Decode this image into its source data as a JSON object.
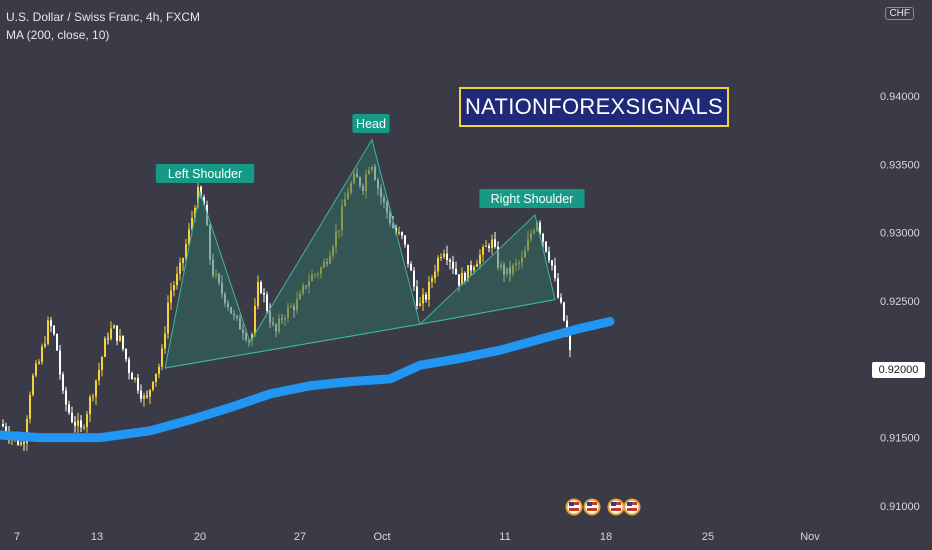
{
  "header": {
    "symbol": "U.S. Dollar / Swiss Franc, 4h, FXCM",
    "indicator": "MA (200, close, 10)"
  },
  "currency_badge": "CHF",
  "brand_label": "NATIONFOREXSIGNALS",
  "last_price": "0.92000",
  "colors": {
    "background": "#3a3b46",
    "up_candle": "#f3d23a",
    "down_candle": "#ffffff",
    "ma_line": "#2196f3",
    "pattern_fill": "#2e6b5e",
    "label_bg": "#159a86"
  },
  "event_icons": [
    "us-flag-icon",
    "us-flag-icon",
    "us-flag-icon",
    "us-flag-icon"
  ],
  "chart_data": {
    "type": "candlestick",
    "pattern": "head-and-shoulders",
    "annotations": [
      "Left Shoulder",
      "Head",
      "Right Shoulder"
    ],
    "y_ticks": [
      "0.94000",
      "0.93500",
      "0.93000",
      "0.92500",
      "0.92000",
      "0.91500",
      "0.91000"
    ],
    "x_ticks": [
      "7",
      "13",
      "20",
      "27",
      "Oct",
      "11",
      "18",
      "25",
      "Nov"
    ],
    "ylim": [
      0.9085,
      0.9475
    ],
    "close_path": [
      [
        0,
        0.916
      ],
      [
        12,
        0.915
      ],
      [
        22,
        0.9145
      ],
      [
        30,
        0.919
      ],
      [
        38,
        0.9205
      ],
      [
        48,
        0.9235
      ],
      [
        55,
        0.922
      ],
      [
        62,
        0.918
      ],
      [
        70,
        0.9165
      ],
      [
        80,
        0.9155
      ],
      [
        90,
        0.918
      ],
      [
        98,
        0.92
      ],
      [
        106,
        0.9225
      ],
      [
        112,
        0.923
      ],
      [
        120,
        0.922
      ],
      [
        128,
        0.92
      ],
      [
        136,
        0.919
      ],
      [
        145,
        0.9175
      ],
      [
        152,
        0.9195
      ],
      [
        160,
        0.9205
      ],
      [
        168,
        0.9255
      ],
      [
        178,
        0.927
      ],
      [
        188,
        0.93
      ],
      [
        196,
        0.933
      ],
      [
        203,
        0.932
      ],
      [
        210,
        0.9275
      ],
      [
        218,
        0.926
      ],
      [
        226,
        0.925
      ],
      [
        234,
        0.9235
      ],
      [
        242,
        0.923
      ],
      [
        250,
        0.922
      ],
      [
        258,
        0.9265
      ],
      [
        266,
        0.9245
      ],
      [
        274,
        0.9225
      ],
      [
        282,
        0.924
      ],
      [
        290,
        0.9245
      ],
      [
        298,
        0.925
      ],
      [
        306,
        0.9265
      ],
      [
        314,
        0.927
      ],
      [
        322,
        0.9275
      ],
      [
        330,
        0.929
      ],
      [
        338,
        0.9305
      ],
      [
        346,
        0.933
      ],
      [
        354,
        0.934
      ],
      [
        362,
        0.9335
      ],
      [
        370,
        0.9355
      ],
      [
        378,
        0.933
      ],
      [
        386,
        0.9315
      ],
      [
        394,
        0.93
      ],
      [
        402,
        0.9295
      ],
      [
        410,
        0.927
      ],
      [
        418,
        0.9245
      ],
      [
        426,
        0.9255
      ],
      [
        434,
        0.9275
      ],
      [
        442,
        0.929
      ],
      [
        450,
        0.928
      ],
      [
        458,
        0.9265
      ],
      [
        466,
        0.927
      ],
      [
        474,
        0.928
      ],
      [
        482,
        0.9285
      ],
      [
        490,
        0.9295
      ],
      [
        498,
        0.9275
      ],
      [
        506,
        0.927
      ],
      [
        514,
        0.9275
      ],
      [
        522,
        0.928
      ],
      [
        530,
        0.93
      ],
      [
        536,
        0.931
      ],
      [
        542,
        0.9295
      ],
      [
        550,
        0.928
      ],
      [
        556,
        0.9255
      ],
      [
        562,
        0.924
      ],
      [
        568,
        0.9215
      ],
      [
        572,
        0.92
      ]
    ],
    "ma_path": [
      [
        0,
        0.9152
      ],
      [
        40,
        0.915
      ],
      [
        100,
        0.915
      ],
      [
        150,
        0.9155
      ],
      [
        190,
        0.9163
      ],
      [
        230,
        0.9172
      ],
      [
        270,
        0.9182
      ],
      [
        310,
        0.9188
      ],
      [
        350,
        0.9191
      ],
      [
        390,
        0.9193
      ],
      [
        420,
        0.9203
      ],
      [
        460,
        0.9208
      ],
      [
        500,
        0.9214
      ],
      [
        540,
        0.9222
      ],
      [
        580,
        0.923
      ],
      [
        610,
        0.9235
      ]
    ]
  }
}
